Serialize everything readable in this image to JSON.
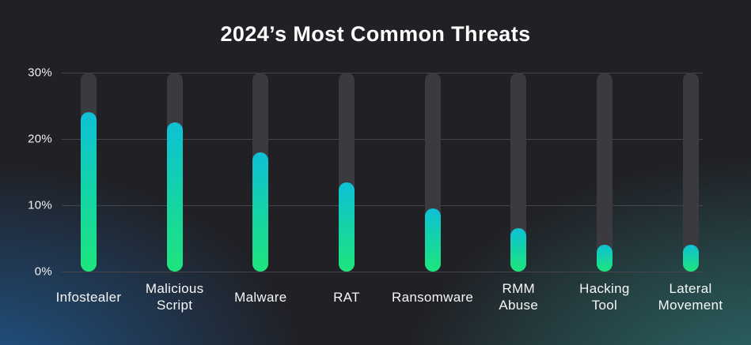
{
  "chart_data": {
    "type": "bar",
    "title": "2024’s Most Common Threats",
    "categories": [
      "Infostealer",
      "Malicious Script",
      "Malware",
      "RAT",
      "Ransomware",
      "RMM Abuse",
      "Hacking Tool",
      "Lateral Movement"
    ],
    "category_lines": [
      [
        "Infostealer"
      ],
      [
        "Malicious",
        "Script"
      ],
      [
        "Malware"
      ],
      [
        "RAT"
      ],
      [
        "Ransomware"
      ],
      [
        "RMM",
        "Abuse"
      ],
      [
        "Hacking",
        "Tool"
      ],
      [
        "Lateral",
        "Movement"
      ]
    ],
    "values": [
      24,
      22.5,
      18,
      13.5,
      9.5,
      6.5,
      4,
      4
    ],
    "unit": "%",
    "xlabel": "",
    "ylabel": "",
    "ylim": [
      0,
      30
    ],
    "yticks": [
      {
        "label": "30%",
        "value": 30
      },
      {
        "label": "20%",
        "value": 20
      },
      {
        "label": "10%",
        "value": 10
      },
      {
        "label": "0%",
        "value": 0
      }
    ],
    "grid": true,
    "legend": false,
    "bar_style": "rounded pill bars over full-height gray tracks reaching 30%",
    "track_top_value": 30,
    "colors": {
      "background": "#202025",
      "glow_bottom_left": "#1f5d96",
      "glow_bottom_right": "#2c706e",
      "track": "#3a3a3f",
      "gridline": "#45454b",
      "bar_gradient_top": "#0fc0d6",
      "bar_gradient_mid": "#13d3a8",
      "bar_gradient_bottom": "#1ee57d",
      "text": "#ffffff"
    }
  }
}
